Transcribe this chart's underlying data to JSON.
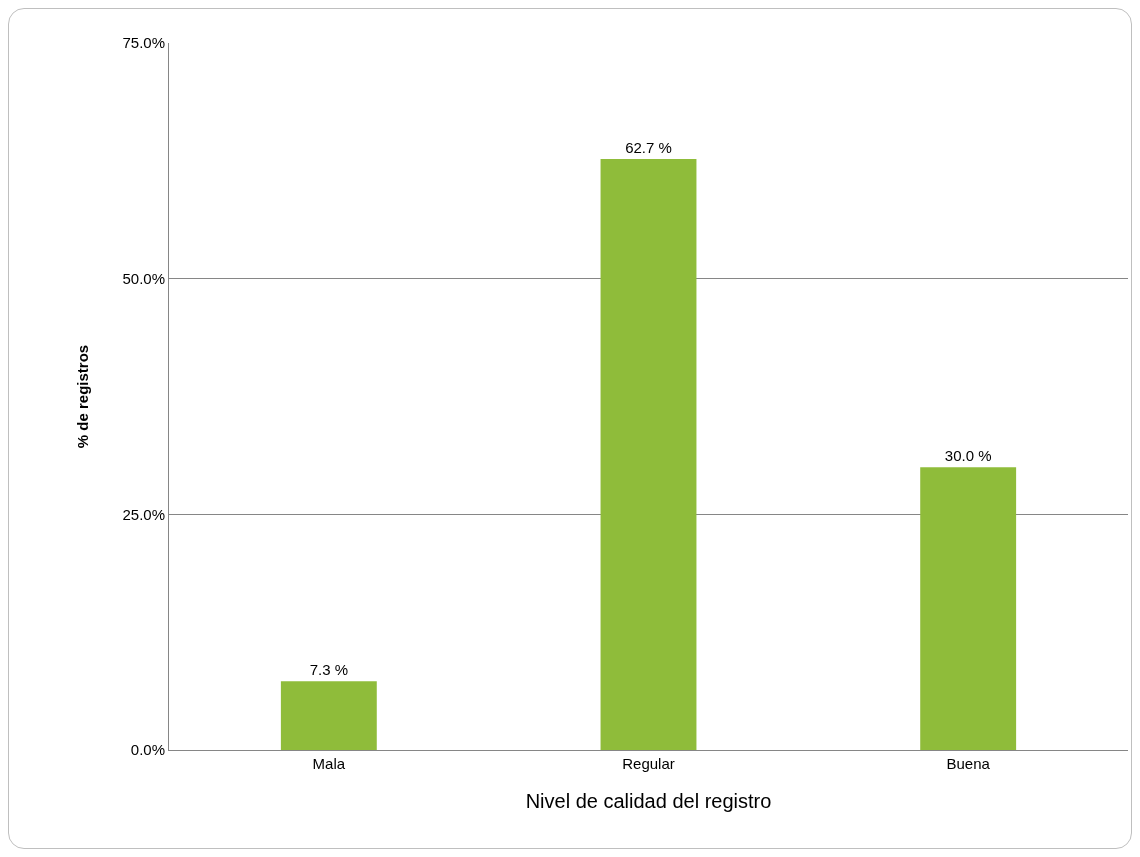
{
  "chart_data": {
    "type": "bar",
    "xlabel": "Nivel de calidad del registro",
    "ylabel": "% de registros",
    "categories": [
      "Mala",
      "Regular",
      "Buena"
    ],
    "values": [
      7.3,
      62.7,
      30.0
    ],
    "value_labels": [
      "7.3 %",
      "62.7 %",
      "30.0 %"
    ],
    "color": "#8fbc3a",
    "ylim": [
      0,
      75
    ],
    "yticks": [
      {
        "value": 0,
        "label": "0.0%"
      },
      {
        "value": 25,
        "label": "25.0%"
      },
      {
        "value": 50,
        "label": "50.0%"
      },
      {
        "value": 75,
        "label": "75.0%"
      }
    ],
    "grid": "y"
  }
}
